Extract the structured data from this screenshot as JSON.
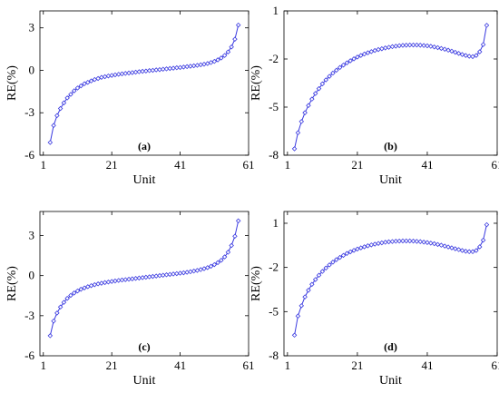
{
  "chart_data": [
    {
      "type": "line",
      "panel_label": "(a)",
      "xlabel": "Unit",
      "ylabel": "RE(%)",
      "xlim": [
        0,
        61
      ],
      "ylim": [
        -6,
        4.2
      ],
      "xticks": [
        1,
        21,
        41,
        61
      ],
      "yticks": [
        -6,
        -3,
        0,
        3
      ],
      "line_color": "#3a3ae0",
      "marker": "diamond",
      "series": [
        {
          "x": [
            3,
            4,
            5,
            6,
            7,
            8,
            9,
            10,
            11,
            12,
            13,
            14,
            15,
            16,
            17,
            18,
            19,
            20,
            21,
            22,
            23,
            24,
            25,
            26,
            27,
            28,
            29,
            30,
            31,
            32,
            33,
            34,
            35,
            36,
            37,
            38,
            39,
            40,
            41,
            42,
            43,
            44,
            45,
            46,
            47,
            48,
            49,
            50,
            51,
            52,
            53,
            54,
            55,
            56,
            57,
            58
          ],
          "values": [
            -5.1,
            -3.9,
            -3.2,
            -2.7,
            -2.3,
            -1.95,
            -1.7,
            -1.45,
            -1.25,
            -1.1,
            -0.95,
            -0.85,
            -0.75,
            -0.65,
            -0.58,
            -0.5,
            -0.45,
            -0.4,
            -0.36,
            -0.32,
            -0.28,
            -0.25,
            -0.22,
            -0.19,
            -0.16,
            -0.13,
            -0.1,
            -0.07,
            -0.05,
            -0.02,
            0.0,
            0.03,
            0.05,
            0.08,
            0.1,
            0.13,
            0.15,
            0.18,
            0.2,
            0.23,
            0.26,
            0.29,
            0.32,
            0.35,
            0.39,
            0.43,
            0.48,
            0.55,
            0.63,
            0.74,
            0.87,
            1.05,
            1.3,
            1.65,
            2.2,
            3.2
          ]
        }
      ]
    },
    {
      "type": "line",
      "panel_label": "(b)",
      "xlabel": "Unit",
      "ylabel": "RE(%)",
      "xlim": [
        0,
        61
      ],
      "ylim": [
        -8,
        1
      ],
      "xticks": [
        1,
        21,
        41,
        61
      ],
      "yticks": [
        -8,
        -5,
        -2,
        1
      ],
      "line_color": "#3a3ae0",
      "marker": "diamond",
      "series": [
        {
          "x": [
            3,
            4,
            5,
            6,
            7,
            8,
            9,
            10,
            11,
            12,
            13,
            14,
            15,
            16,
            17,
            18,
            19,
            20,
            21,
            22,
            23,
            24,
            25,
            26,
            27,
            28,
            29,
            30,
            31,
            32,
            33,
            34,
            35,
            36,
            37,
            38,
            39,
            40,
            41,
            42,
            43,
            44,
            45,
            46,
            47,
            48,
            49,
            50,
            51,
            52,
            53,
            54,
            55,
            56,
            57,
            58
          ],
          "values": [
            -7.6,
            -6.6,
            -5.9,
            -5.35,
            -4.9,
            -4.5,
            -4.15,
            -3.85,
            -3.55,
            -3.3,
            -3.08,
            -2.88,
            -2.7,
            -2.53,
            -2.38,
            -2.24,
            -2.11,
            -1.99,
            -1.88,
            -1.78,
            -1.69,
            -1.61,
            -1.54,
            -1.47,
            -1.41,
            -1.36,
            -1.31,
            -1.27,
            -1.23,
            -1.2,
            -1.17,
            -1.15,
            -1.14,
            -1.13,
            -1.13,
            -1.13,
            -1.14,
            -1.16,
            -1.18,
            -1.21,
            -1.25,
            -1.29,
            -1.34,
            -1.39,
            -1.45,
            -1.51,
            -1.58,
            -1.65,
            -1.72,
            -1.78,
            -1.83,
            -1.85,
            -1.78,
            -1.55,
            -1.1,
            0.1
          ]
        }
      ]
    },
    {
      "type": "line",
      "panel_label": "(c)",
      "xlabel": "Unit",
      "ylabel": "RE(%)",
      "xlim": [
        0,
        61
      ],
      "ylim": [
        -6,
        4.8
      ],
      "xticks": [
        1,
        21,
        41,
        61
      ],
      "yticks": [
        -6,
        -3,
        0,
        3
      ],
      "line_color": "#3a3ae0",
      "marker": "diamond",
      "series": [
        {
          "x": [
            3,
            4,
            5,
            6,
            7,
            8,
            9,
            10,
            11,
            12,
            13,
            14,
            15,
            16,
            17,
            18,
            19,
            20,
            21,
            22,
            23,
            24,
            25,
            26,
            27,
            28,
            29,
            30,
            31,
            32,
            33,
            34,
            35,
            36,
            37,
            38,
            39,
            40,
            41,
            42,
            43,
            44,
            45,
            46,
            47,
            48,
            49,
            50,
            51,
            52,
            53,
            54,
            55,
            56,
            57,
            58
          ],
          "values": [
            -4.5,
            -3.4,
            -2.8,
            -2.35,
            -2.0,
            -1.7,
            -1.48,
            -1.3,
            -1.15,
            -1.02,
            -0.92,
            -0.83,
            -0.75,
            -0.68,
            -0.62,
            -0.57,
            -0.52,
            -0.48,
            -0.44,
            -0.4,
            -0.36,
            -0.33,
            -0.3,
            -0.27,
            -0.24,
            -0.21,
            -0.18,
            -0.15,
            -0.12,
            -0.09,
            -0.06,
            -0.03,
            0.0,
            0.03,
            0.06,
            0.09,
            0.12,
            0.15,
            0.18,
            0.21,
            0.25,
            0.29,
            0.34,
            0.39,
            0.45,
            0.52,
            0.6,
            0.7,
            0.82,
            0.97,
            1.15,
            1.4,
            1.75,
            2.25,
            2.95,
            4.1
          ]
        }
      ]
    },
    {
      "type": "line",
      "panel_label": "(d)",
      "xlabel": "Unit",
      "ylabel": "RE(%)",
      "xlim": [
        0,
        61
      ],
      "ylim": [
        -8,
        1.8
      ],
      "xticks": [
        1,
        21,
        41,
        61
      ],
      "yticks": [
        -8,
        -5,
        -2,
        1
      ],
      "line_color": "#3a3ae0",
      "marker": "diamond",
      "series": [
        {
          "x": [
            3,
            4,
            5,
            6,
            7,
            8,
            9,
            10,
            11,
            12,
            13,
            14,
            15,
            16,
            17,
            18,
            19,
            20,
            21,
            22,
            23,
            24,
            25,
            26,
            27,
            28,
            29,
            30,
            31,
            32,
            33,
            34,
            35,
            36,
            37,
            38,
            39,
            40,
            41,
            42,
            43,
            44,
            45,
            46,
            47,
            48,
            49,
            50,
            51,
            52,
            53,
            54,
            55,
            56,
            57,
            58
          ],
          "values": [
            -6.6,
            -5.3,
            -4.6,
            -4.0,
            -3.55,
            -3.15,
            -2.82,
            -2.53,
            -2.27,
            -2.04,
            -1.83,
            -1.64,
            -1.47,
            -1.32,
            -1.18,
            -1.05,
            -0.94,
            -0.84,
            -0.75,
            -0.67,
            -0.6,
            -0.53,
            -0.47,
            -0.42,
            -0.37,
            -0.33,
            -0.29,
            -0.26,
            -0.24,
            -0.22,
            -0.21,
            -0.2,
            -0.2,
            -0.2,
            -0.21,
            -0.23,
            -0.25,
            -0.28,
            -0.31,
            -0.35,
            -0.39,
            -0.44,
            -0.49,
            -0.55,
            -0.61,
            -0.67,
            -0.73,
            -0.79,
            -0.85,
            -0.9,
            -0.93,
            -0.93,
            -0.85,
            -0.6,
            -0.15,
            0.9
          ]
        }
      ]
    }
  ]
}
